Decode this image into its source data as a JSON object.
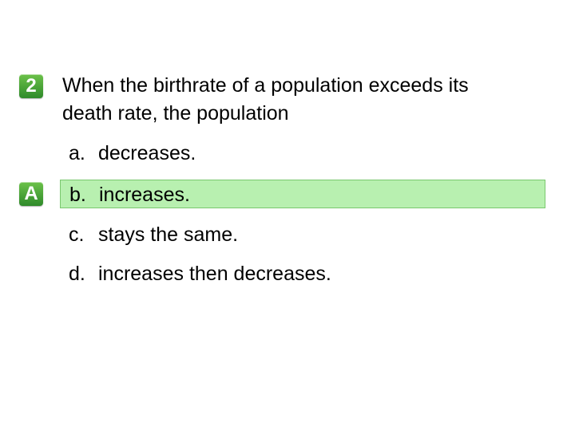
{
  "question": {
    "number": "2",
    "text_line1": "When the birthrate of a population exceeds its",
    "text_line2": "death rate, the population"
  },
  "answer_badge": "A",
  "choices": [
    {
      "letter": "a.",
      "text": "decreases."
    },
    {
      "letter": "b.",
      "text": "increases."
    },
    {
      "letter": "c.",
      "text": "stays the same."
    },
    {
      "letter": "d.",
      "text": "increases then decreases."
    }
  ],
  "colors": {
    "badge_green": "#3a9a32",
    "correct_highlight": "#b8f0b0"
  }
}
